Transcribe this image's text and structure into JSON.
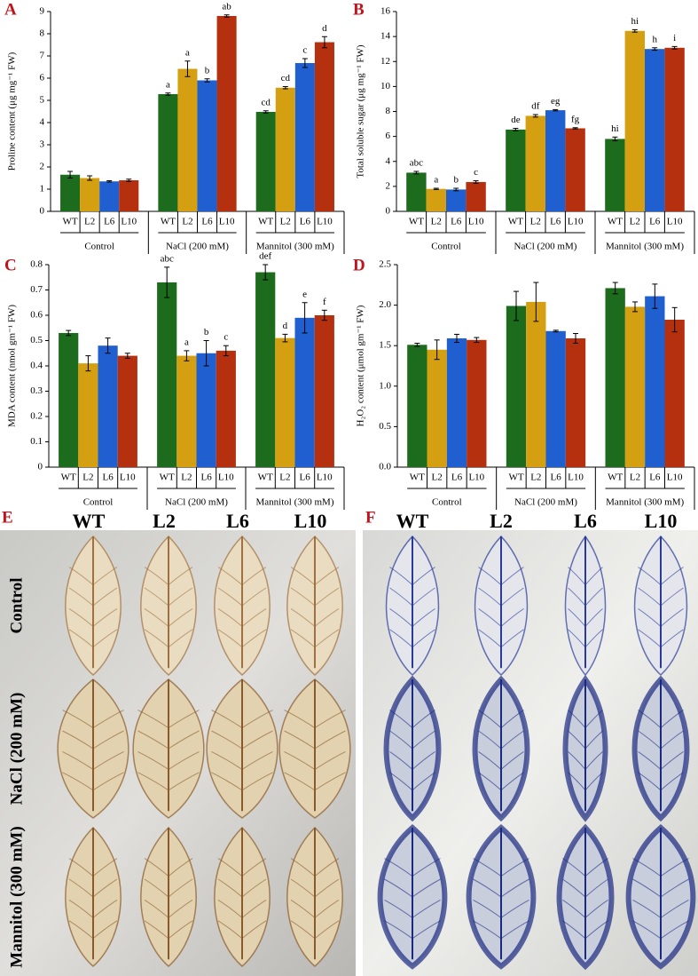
{
  "chart_data": [
    {
      "type": "bar",
      "panel": "A",
      "ylabel": "Proline content (μg mg⁻¹ FW)",
      "groups": [
        "Control",
        "NaCl (200 mM)",
        "Mannitol (300 mM)"
      ],
      "ylim": [
        0,
        9
      ],
      "yticks": [
        0,
        1,
        2,
        3,
        4,
        5,
        6,
        7,
        8,
        9
      ],
      "series": [
        {
          "name": "WT",
          "color": "#1d6b1d",
          "values": [
            1.65,
            5.28,
            4.48
          ],
          "errors": [
            0.15,
            0.05,
            0.05
          ],
          "annotations": [
            null,
            "a",
            "cd"
          ]
        },
        {
          "name": "L2",
          "color": "#d4a011",
          "values": [
            1.5,
            6.42,
            5.57
          ],
          "errors": [
            0.1,
            0.35,
            0.05
          ],
          "annotations": [
            null,
            "a",
            "cd"
          ]
        },
        {
          "name": "L6",
          "color": "#1f5fcf",
          "values": [
            1.35,
            5.9,
            6.68
          ],
          "errors": [
            0.03,
            0.07,
            0.2
          ],
          "annotations": [
            null,
            "b",
            "c"
          ]
        },
        {
          "name": "L10",
          "color": "#b5300e",
          "values": [
            1.4,
            8.8,
            7.62
          ],
          "errors": [
            0.05,
            0.05,
            0.25
          ],
          "annotations": [
            null,
            "ab",
            "d"
          ]
        }
      ]
    },
    {
      "type": "bar",
      "panel": "B",
      "ylabel": "Total soluble sugar (μg mg⁻¹ FW)",
      "groups": [
        "Control",
        "NaCl (200 mM)",
        "Mannitol (300 mM)"
      ],
      "ylim": [
        0,
        16
      ],
      "yticks": [
        0,
        2,
        4,
        6,
        8,
        10,
        12,
        14,
        16
      ],
      "series": [
        {
          "name": "WT",
          "color": "#1d6b1d",
          "values": [
            3.1,
            6.55,
            5.8
          ],
          "errors": [
            0.1,
            0.1,
            0.15
          ],
          "annotations": [
            "abc",
            "de",
            "hi"
          ]
        },
        {
          "name": "L2",
          "color": "#d4a011",
          "values": [
            1.8,
            7.65,
            14.45
          ],
          "errors": [
            0.05,
            0.1,
            0.1
          ],
          "annotations": [
            "a",
            "df",
            "hi"
          ]
        },
        {
          "name": "L6",
          "color": "#1f5fcf",
          "values": [
            1.75,
            8.1,
            13.0
          ],
          "errors": [
            0.1,
            0.05,
            0.1
          ],
          "annotations": [
            "b",
            "eg",
            "h"
          ]
        },
        {
          "name": "L10",
          "color": "#b5300e",
          "values": [
            2.35,
            6.65,
            13.1
          ],
          "errors": [
            0.1,
            0.05,
            0.1
          ],
          "annotations": [
            "c",
            "fg",
            "i"
          ]
        }
      ]
    },
    {
      "type": "bar",
      "panel": "C",
      "ylabel": "MDA content  (nmol gm⁻¹ FW)",
      "groups": [
        "Control",
        "NaCl (200 mM)",
        "Mannitol (300 mM)"
      ],
      "ylim": [
        0,
        0.8
      ],
      "yticks": [
        0,
        0.1,
        0.2,
        0.3,
        0.4,
        0.5,
        0.6,
        0.7,
        0.8
      ],
      "series": [
        {
          "name": "WT",
          "color": "#1d6b1d",
          "values": [
            0.53,
            0.73,
            0.77
          ],
          "errors": [
            0.01,
            0.06,
            0.03
          ],
          "annotations": [
            null,
            "abc",
            "def"
          ]
        },
        {
          "name": "L2",
          "color": "#d4a011",
          "values": [
            0.41,
            0.44,
            0.51
          ],
          "errors": [
            0.03,
            0.02,
            0.015
          ],
          "annotations": [
            null,
            "a",
            "d"
          ]
        },
        {
          "name": "L6",
          "color": "#1f5fcf",
          "values": [
            0.48,
            0.45,
            0.59
          ],
          "errors": [
            0.03,
            0.05,
            0.06
          ],
          "annotations": [
            null,
            "b",
            "e"
          ]
        },
        {
          "name": "L10",
          "color": "#b5300e",
          "values": [
            0.44,
            0.46,
            0.6
          ],
          "errors": [
            0.01,
            0.02,
            0.02
          ],
          "annotations": [
            null,
            "c",
            "f"
          ]
        }
      ]
    },
    {
      "type": "bar",
      "panel": "D",
      "ylabel": "H₂O₂ content (μmol gm⁻¹ FW)",
      "groups": [
        "Control",
        "NaCl (200 mM)",
        "Mannitol (300 mM)"
      ],
      "ylim": [
        0,
        2.5
      ],
      "yticks": [
        {
          "value": 0,
          "label": "0.0"
        },
        0.5,
        {
          "value": 1,
          "label": "1.0"
        },
        1.5,
        {
          "value": 2,
          "label": "2.0"
        },
        2.5
      ],
      "series": [
        {
          "name": "WT",
          "color": "#1d6b1d",
          "values": [
            1.51,
            1.99,
            2.21
          ],
          "errors": [
            0.02,
            0.18,
            0.07
          ]
        },
        {
          "name": "L2",
          "color": "#d4a011",
          "values": [
            1.45,
            2.04,
            1.98
          ],
          "errors": [
            0.12,
            0.24,
            0.06
          ]
        },
        {
          "name": "L6",
          "color": "#1f5fcf",
          "values": [
            1.59,
            1.68,
            2.11
          ],
          "errors": [
            0.05,
            0.01,
            0.15
          ]
        },
        {
          "name": "L10",
          "color": "#b5300e",
          "values": [
            1.57,
            1.59,
            1.82
          ],
          "errors": [
            0.03,
            0.06,
            0.15
          ]
        }
      ]
    }
  ],
  "photos": [
    {
      "label": "E",
      "columns": [
        "WT",
        "L2",
        "L6",
        "L10"
      ],
      "rows": [
        "Control",
        "NaCl (200 mM)",
        "Mannitol (300 mM)"
      ]
    },
    {
      "label": "F",
      "columns": [
        "WT",
        "L2",
        "L6",
        "L10"
      ]
    }
  ]
}
